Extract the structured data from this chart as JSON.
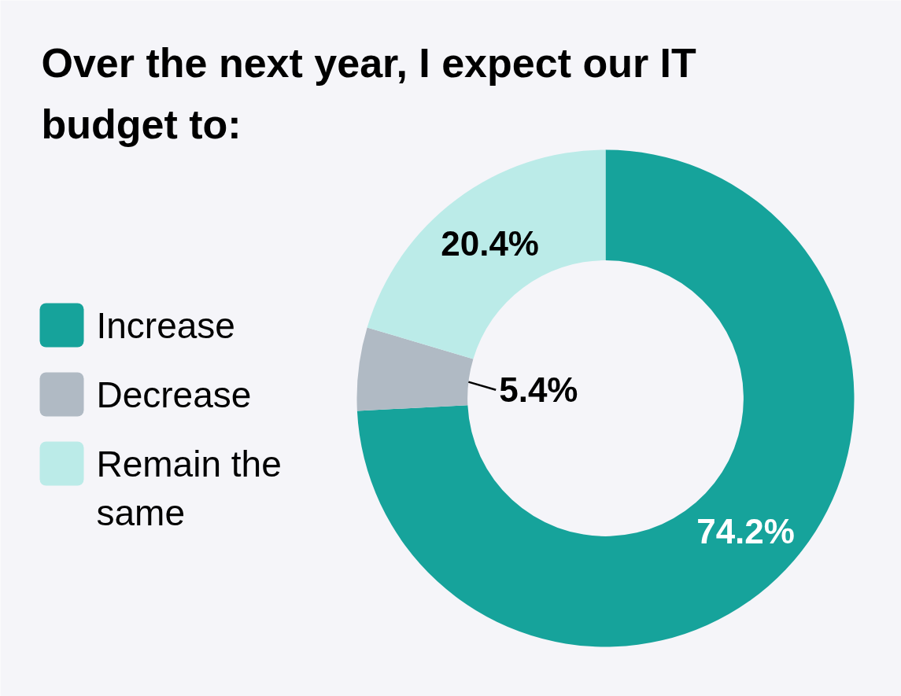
{
  "chart_data": {
    "type": "donut",
    "title": "Over the next year, I expect our IT budget to:",
    "categories": [
      "Increase",
      "Decrease",
      "Remain the same"
    ],
    "values": [
      74.2,
      5.4,
      20.4
    ],
    "colors": [
      "#16a39b",
      "#b0bac4",
      "#bbebe8"
    ],
    "value_labels": [
      "74.2%",
      "5.4%",
      "20.4%"
    ],
    "legend": "left"
  }
}
